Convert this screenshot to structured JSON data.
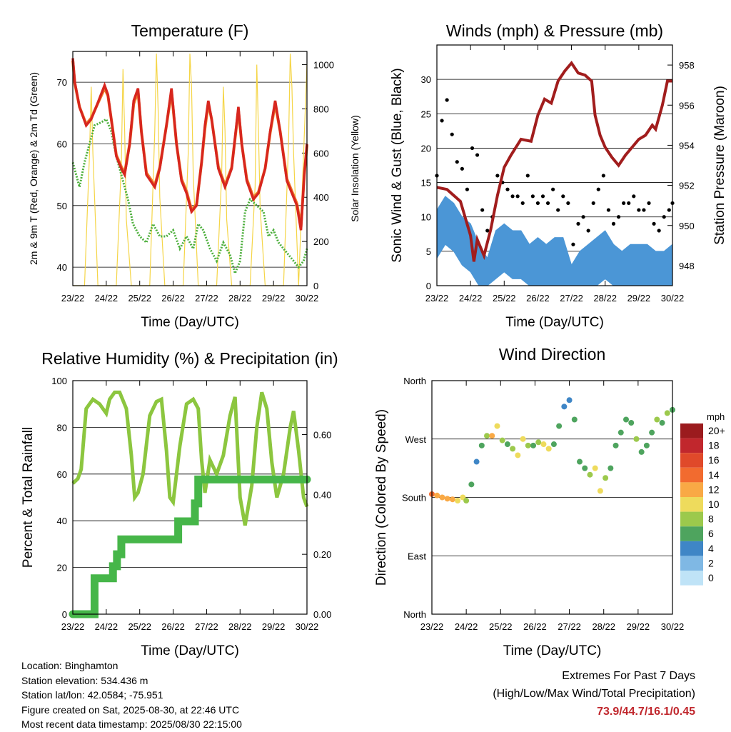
{
  "colors": {
    "temp_2m": "#d7261e",
    "temp_9m": "#f07f2a",
    "dewpoint": "#4daf3c",
    "solar": "#f5d547",
    "wind": "#4b96d6",
    "gust": "#000000",
    "pressure": "#a11d1d",
    "rh": "#8cc63f",
    "precip": "#46b649"
  },
  "info": {
    "location": "Location: Binghamton",
    "elevation": "Station elevation: 534.436 m",
    "latlon": "Station lat/lon: 42.0584; -75.951",
    "created": "Figure created on Sat, 2025-08-30, at 22:46 UTC",
    "latest": "Most recent data timestamp: 2025/08/30 22:15:00"
  },
  "extremes": {
    "title": "Extremes For Past 7 Days",
    "subtitle": "(High/Low/Max Wind/Total Precipitation)",
    "values": "73.9/44.7/16.1/0.45"
  },
  "chart_data": [
    {
      "type": "line",
      "title": "Temperature (F)",
      "xlabel": "Time (Day/UTC)",
      "ylabel": "2m & 9m T (Red, Orange) & 2m Td (Green)",
      "ylabel_right": "Solar Insolation (Yellow)",
      "x_ticks": [
        "23/22",
        "24/22",
        "25/22",
        "26/22",
        "27/22",
        "28/22",
        "29/22",
        "30/22"
      ],
      "xlim": [
        0,
        7
      ],
      "ylim": [
        37,
        75
      ],
      "y_ticks": [
        40,
        50,
        60,
        70
      ],
      "ylim_right": [
        0,
        1060
      ],
      "y_ticks_right": [
        0,
        200,
        400,
        600,
        800,
        1000
      ],
      "grid": "horizontal",
      "series": [
        {
          "axis": "left",
          "x": [
            0,
            0.06,
            0.2,
            0.4,
            0.55,
            0.7,
            0.95,
            1.05,
            1.15,
            1.3,
            1.45,
            1.55,
            1.7,
            1.82,
            1.95,
            2.05,
            2.2,
            2.45,
            2.6,
            2.8,
            2.95,
            3.1,
            3.25,
            3.4,
            3.55,
            3.7,
            3.85,
            3.95,
            4.05,
            4.15,
            4.35,
            4.55,
            4.75,
            4.95,
            5.05,
            5.2,
            5.4,
            5.55,
            5.75,
            5.9,
            6.05,
            6.2,
            6.4,
            6.55,
            6.7,
            6.82,
            6.92,
            7
          ],
          "y": [
            73.9,
            70,
            66,
            63,
            64,
            66,
            69.5,
            68,
            64,
            58,
            56,
            55,
            60,
            67,
            69,
            62,
            55,
            53,
            56,
            63,
            69,
            60,
            54,
            52,
            49,
            50,
            57,
            63,
            67,
            64,
            56,
            53,
            56,
            66,
            60,
            54,
            51,
            52,
            56,
            62,
            67,
            62,
            54,
            52,
            50,
            46,
            55,
            60
          ]
        },
        {
          "axis": "left",
          "x": [
            0,
            0.06,
            0.2,
            0.4,
            0.55,
            0.7,
            0.95,
            1.05,
            1.15,
            1.3,
            1.45,
            1.55,
            1.7,
            1.82,
            1.95,
            2.05,
            2.2,
            2.45,
            2.6,
            2.8,
            2.95,
            3.1,
            3.25,
            3.4,
            3.55,
            3.7,
            3.85,
            3.95,
            4.05,
            4.15,
            4.35,
            4.55,
            4.75,
            4.95,
            5.05,
            5.2,
            5.4,
            5.55,
            5.75,
            5.9,
            6.05,
            6.2,
            6.4,
            6.55,
            6.7,
            6.82,
            6.92,
            7
          ],
          "y": [
            73.5,
            69.8,
            66,
            63.2,
            64.2,
            66,
            69,
            67.8,
            64,
            58.2,
            56.3,
            55.3,
            60,
            66.5,
            68.5,
            62,
            55.3,
            53.3,
            56.2,
            63,
            68.5,
            60,
            54.3,
            52.3,
            49.3,
            50.2,
            57,
            62.5,
            66.5,
            64,
            56.3,
            53.3,
            56.2,
            65.5,
            60,
            54.3,
            51.3,
            52.2,
            56,
            61.8,
            66.5,
            62,
            54.3,
            52.3,
            50.3,
            46.5,
            55,
            59.8
          ]
        },
        {
          "axis": "left",
          "x": [
            0,
            0.2,
            0.35,
            0.5,
            0.65,
            0.85,
            1.0,
            1.15,
            1.3,
            1.5,
            1.65,
            1.8,
            2.0,
            2.2,
            2.4,
            2.6,
            2.8,
            3.0,
            3.2,
            3.4,
            3.6,
            3.75,
            3.9,
            4.1,
            4.3,
            4.5,
            4.7,
            4.85,
            5.0,
            5.15,
            5.3,
            5.5,
            5.7,
            5.85,
            6.0,
            6.15,
            6.3,
            6.45,
            6.6,
            6.75,
            6.9,
            7
          ],
          "y": [
            57,
            53,
            57,
            60,
            63,
            63.5,
            64,
            62,
            58,
            54,
            51,
            47,
            45,
            44,
            47,
            45,
            45,
            46,
            43,
            45,
            43,
            47,
            46,
            43,
            41,
            44,
            42,
            39,
            41,
            49,
            51,
            50,
            49,
            45,
            46,
            44,
            43,
            42,
            41,
            40,
            41,
            43
          ]
        },
        {
          "axis": "right",
          "type": "area",
          "x": [
            0,
            0.35,
            0.5,
            0.55,
            0.6,
            0.75,
            1.3,
            1.45,
            1.5,
            1.55,
            1.6,
            1.75,
            2.3,
            2.45,
            2.5,
            2.55,
            2.6,
            2.75,
            3.3,
            3.45,
            3.5,
            3.55,
            3.6,
            3.75,
            4.3,
            4.45,
            4.5,
            4.55,
            4.6,
            4.75,
            5.3,
            5.45,
            5.5,
            5.55,
            5.6,
            5.75,
            6.3,
            6.45,
            6.5,
            6.55,
            6.6,
            6.75,
            7
          ],
          "y": [
            0,
            0,
            600,
            900,
            600,
            0,
            0,
            550,
            980,
            700,
            300,
            0,
            0,
            700,
            1050,
            800,
            400,
            0,
            0,
            600,
            1050,
            900,
            500,
            0,
            0,
            500,
            900,
            700,
            300,
            0,
            0,
            450,
            1000,
            700,
            350,
            0,
            0,
            650,
            1050,
            900,
            600,
            0,
            1000
          ]
        }
      ]
    },
    {
      "type": "scatter",
      "title": "Winds (mph) & Pressure (mb)",
      "xlabel": "Time (Day/UTC)",
      "ylabel": "Sonic Wind & Gust (Blue, Black)",
      "ylabel_right": "Station Pressure (Maroon)",
      "x_ticks": [
        "23/22",
        "24/22",
        "25/22",
        "26/22",
        "27/22",
        "28/22",
        "29/22",
        "30/22"
      ],
      "xlim": [
        0,
        7
      ],
      "ylim": [
        0,
        35
      ],
      "y_ticks": [
        0,
        5,
        10,
        15,
        20,
        25,
        30
      ],
      "ylim_right": [
        947,
        959
      ],
      "y_ticks_right": [
        948,
        950,
        952,
        954,
        956,
        958
      ],
      "grid": "horizontal",
      "series": [
        {
          "axis": "left",
          "style": "band",
          "x": [
            0,
            0.25,
            0.5,
            0.75,
            1.0,
            1.25,
            1.5,
            1.75,
            2.0,
            2.25,
            2.5,
            2.75,
            3.0,
            3.25,
            3.5,
            3.75,
            4.0,
            4.25,
            4.5,
            4.75,
            5.0,
            5.25,
            5.5,
            5.75,
            6.0,
            6.25,
            6.5,
            6.75,
            7
          ],
          "y": [
            11,
            13,
            12,
            10,
            9,
            6,
            4,
            8,
            9,
            8,
            8,
            6,
            7,
            6,
            7,
            7,
            3,
            5,
            6,
            7,
            8,
            6,
            5,
            6,
            6,
            6,
            5,
            5,
            6
          ]
        },
        {
          "axis": "left",
          "style": "points",
          "x": [
            0,
            0.15,
            0.3,
            0.45,
            0.6,
            0.75,
            0.9,
            1.05,
            1.2,
            1.35,
            1.5,
            1.65,
            1.8,
            1.95,
            2.1,
            2.25,
            2.4,
            2.55,
            2.7,
            2.85,
            3.0,
            3.15,
            3.3,
            3.45,
            3.6,
            3.75,
            3.9,
            4.05,
            4.2,
            4.35,
            4.5,
            4.65,
            4.8,
            4.95,
            5.1,
            5.25,
            5.4,
            5.55,
            5.7,
            5.85,
            6.0,
            6.15,
            6.3,
            6.45,
            6.6,
            6.75,
            6.9,
            7
          ],
          "y": [
            16,
            24,
            27,
            22,
            18,
            17,
            14,
            20,
            19,
            11,
            8,
            10,
            16,
            15,
            14,
            13,
            13,
            12,
            16,
            13,
            12,
            13,
            12,
            14,
            11,
            13,
            12,
            6,
            9,
            10,
            8,
            12,
            14,
            16,
            11,
            9,
            10,
            12,
            12,
            13,
            11,
            11,
            12,
            9,
            8,
            10,
            11,
            12
          ]
        },
        {
          "axis": "right",
          "style": "line",
          "x": [
            0,
            0.3,
            0.5,
            0.7,
            1.0,
            1.1,
            1.2,
            1.4,
            1.6,
            1.8,
            2.0,
            2.2,
            2.5,
            2.8,
            3.0,
            3.2,
            3.4,
            3.6,
            3.8,
            4.0,
            4.2,
            4.4,
            4.6,
            4.7,
            4.85,
            5.0,
            5.2,
            5.4,
            5.6,
            5.8,
            6.0,
            6.2,
            6.4,
            6.5,
            6.7,
            6.85,
            7
          ],
          "y": [
            951.9,
            951.8,
            951.5,
            951.2,
            949.5,
            948.2,
            949.3,
            948.5,
            949.8,
            951.5,
            952.9,
            953.5,
            954.3,
            954.2,
            955.5,
            956.3,
            956.1,
            957.2,
            957.7,
            958.1,
            957.6,
            957.5,
            957.2,
            955.5,
            954.5,
            953.9,
            953.4,
            953.0,
            953.5,
            953.9,
            954.3,
            954.5,
            955.0,
            954.8,
            956.0,
            957.2,
            957.2
          ]
        }
      ]
    },
    {
      "type": "line",
      "title": "Relative Humidity (%) & Precipitation (in)",
      "xlabel": "Time (Day/UTC)",
      "ylabel": "Percent & Total Rainfall",
      "x_ticks": [
        "23/22",
        "24/22",
        "25/22",
        "26/22",
        "27/22",
        "28/22",
        "29/22",
        "30/22"
      ],
      "xlim": [
        0,
        7
      ],
      "ylim": [
        0,
        100
      ],
      "y_ticks": [
        0,
        20,
        40,
        60,
        80,
        100
      ],
      "ylim_right": [
        0,
        0.78
      ],
      "y_ticks_right": [
        "0.00",
        "0.20",
        "0.40",
        "0.60"
      ],
      "grid": "horizontal",
      "series": [
        {
          "axis": "left",
          "x": [
            0,
            0.15,
            0.25,
            0.4,
            0.6,
            0.8,
            1.0,
            1.1,
            1.25,
            1.4,
            1.6,
            1.75,
            1.85,
            1.95,
            2.1,
            2.3,
            2.5,
            2.65,
            2.8,
            2.9,
            3.0,
            3.2,
            3.4,
            3.6,
            3.75,
            3.85,
            3.95,
            4.1,
            4.3,
            4.5,
            4.7,
            4.85,
            5.0,
            5.15,
            5.35,
            5.5,
            5.65,
            5.8,
            5.95,
            6.1,
            6.3,
            6.5,
            6.6,
            6.75,
            6.9,
            7
          ],
          "y": [
            56,
            58,
            62,
            88,
            92,
            90,
            86,
            92,
            95,
            95,
            88,
            68,
            50,
            52,
            60,
            85,
            91,
            92,
            70,
            50,
            48,
            72,
            90,
            92,
            88,
            66,
            52,
            66,
            60,
            68,
            85,
            93,
            50,
            38,
            55,
            80,
            95,
            88,
            65,
            50,
            60,
            80,
            87,
            70,
            50,
            46
          ]
        },
        {
          "axis": "right",
          "style": "step",
          "x": [
            0,
            0.65,
            0.65,
            1.2,
            1.2,
            1.32,
            1.32,
            1.45,
            1.45,
            3.15,
            3.15,
            3.65,
            3.65,
            3.75,
            3.75,
            7
          ],
          "y": [
            0,
            0,
            0.12,
            0.12,
            0.16,
            0.16,
            0.2,
            0.2,
            0.25,
            0.25,
            0.31,
            0.31,
            0.37,
            0.37,
            0.45,
            0.45
          ]
        }
      ]
    },
    {
      "type": "scatter",
      "title": "Wind Direction",
      "xlabel": "Time (Day/UTC)",
      "ylabel": "Direction (Colored By Speed)",
      "x_ticks": [
        "23/22",
        "24/22",
        "25/22",
        "26/22",
        "27/22",
        "28/22",
        "29/22",
        "30/22"
      ],
      "xlim": [
        0,
        7
      ],
      "ylim": [
        0,
        360
      ],
      "y_ticks": [
        "North",
        "East",
        "South",
        "West",
        "North"
      ],
      "grid": "horizontal",
      "legend": {
        "title": "mph",
        "placement": "right",
        "labels": [
          "20+",
          "18",
          "16",
          "14",
          "12",
          "10",
          "8",
          "6",
          "4",
          "2",
          "0"
        ],
        "colors": [
          "#9b1b1e",
          "#c1272d",
          "#e0492a",
          "#f26b2f",
          "#f9a945",
          "#eedb5c",
          "#9cc94c",
          "#4ea45e",
          "#3f86c6",
          "#7fb8e4",
          "#bfe3f7"
        ]
      },
      "series": [
        {
          "x": [
            0,
            0.15,
            0.3,
            0.45,
            0.6,
            0.75,
            0.9,
            1.0,
            1.15,
            1.3,
            1.45,
            1.6,
            1.75,
            1.9,
            2.05,
            2.2,
            2.35,
            2.5,
            2.65,
            2.8,
            2.95,
            3.1,
            3.25,
            3.4,
            3.55,
            3.7,
            3.85,
            4.0,
            4.15,
            4.3,
            4.45,
            4.6,
            4.75,
            4.9,
            5.05,
            5.2,
            5.35,
            5.5,
            5.65,
            5.8,
            5.95,
            6.1,
            6.25,
            6.4,
            6.55,
            6.7,
            6.85,
            7
          ],
          "y": [
            185,
            183,
            180,
            178,
            177,
            175,
            180,
            175,
            200,
            235,
            260,
            275,
            275,
            290,
            268,
            262,
            255,
            245,
            270,
            260,
            260,
            265,
            262,
            255,
            262,
            290,
            320,
            330,
            300,
            235,
            225,
            215,
            225,
            190,
            210,
            225,
            260,
            280,
            300,
            295,
            270,
            250,
            260,
            280,
            300,
            295,
            310,
            315
          ],
          "speed": [
            13,
            12,
            11,
            12,
            11,
            10,
            9,
            7,
            5,
            4,
            6,
            8,
            12,
            10,
            8,
            6,
            7,
            9,
            10,
            7,
            6,
            8,
            10,
            9,
            6,
            5,
            4,
            3,
            5,
            5,
            6,
            8,
            10,
            9,
            7,
            5,
            6,
            5,
            5,
            6,
            8,
            6,
            5,
            6,
            7,
            6,
            7,
            5
          ]
        }
      ]
    }
  ]
}
